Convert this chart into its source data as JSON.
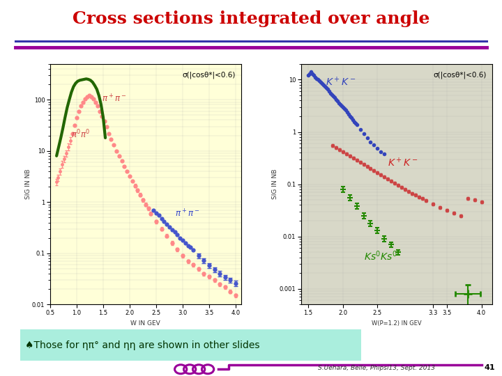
{
  "title": "Cross sections integrated over angle",
  "title_color": "#cc0000",
  "title_fontsize": 18,
  "bg_color": "#ffffff",
  "left_panel_bg": "#ffffd8",
  "right_panel_bg": "#d8d8c8",
  "left_label_sigma": "σ(|cosθ*|<0.6)",
  "right_label_sigma": "σ(|cosθ*|<0.6)",
  "left_xlabel": "W IN GEV",
  "right_xlabel": "W(P=1.2) IN GEV",
  "left_ylabel": "SIG IN NB",
  "right_ylabel": "SIG IN NB",
  "footer_text": "S.Uehara, Belle, Phipsi13, Sept. 2013",
  "footer_page": "41",
  "bottom_text": "♠Those for ηπ° and ηη are shown in other slides",
  "bottom_box_color": "#aaeedd",
  "blue_line_color": "#3333aa",
  "purple_line_color": "#990099",
  "underline1_color": "#3333aa",
  "underline2_color": "#990099"
}
